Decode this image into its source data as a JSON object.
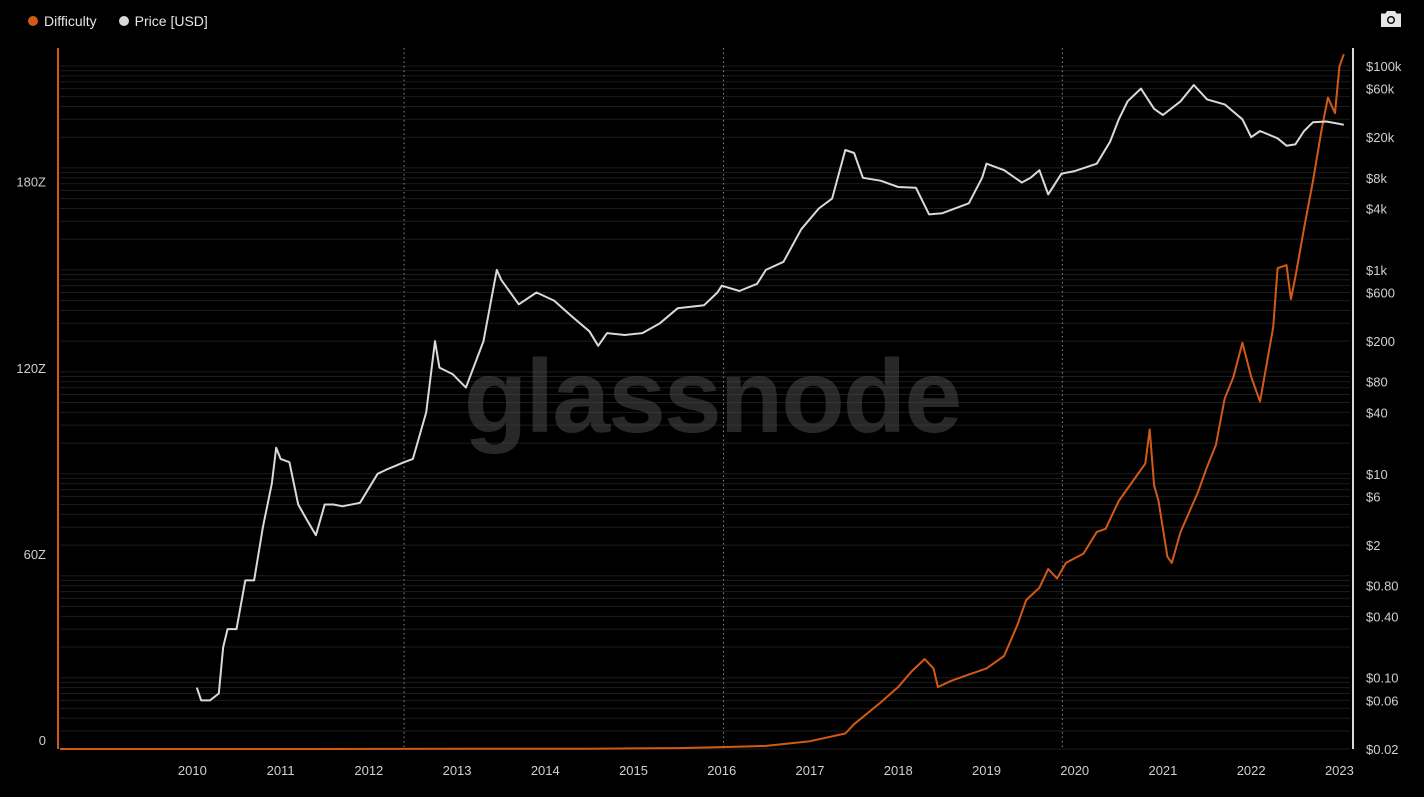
{
  "legend": {
    "series1": "Difficulty",
    "series2": "Price [USD]"
  },
  "watermark": "glassnode",
  "colors": {
    "difficulty": "#d35a16",
    "price": "#d9d9d9",
    "background": "#000000",
    "grid": "#1c1c1c"
  },
  "icons": {
    "camera": "camera-icon"
  },
  "chart_data": {
    "type": "line",
    "x_ticks": [
      "2010",
      "2011",
      "2012",
      "2013",
      "2014",
      "2015",
      "2016",
      "2017",
      "2018",
      "2019",
      "2020",
      "2021",
      "2022",
      "2023"
    ],
    "left_axis": {
      "ticks": [
        {
          "value": 0,
          "label": "0"
        },
        {
          "value": 60,
          "label": "60Z"
        },
        {
          "value": 120,
          "label": "120Z"
        },
        {
          "value": 180,
          "label": "180Z"
        }
      ],
      "range": [
        0,
        226
      ]
    },
    "right_axis": {
      "scale": "log",
      "range": [
        0.02,
        150000
      ],
      "ticks": [
        {
          "value": 0.02,
          "label": "$0.02"
        },
        {
          "value": 0.06,
          "label": "$0.06"
        },
        {
          "value": 0.1,
          "label": "$0.10"
        },
        {
          "value": 0.4,
          "label": "$0.40"
        },
        {
          "value": 0.8,
          "label": "$0.80"
        },
        {
          "value": 2,
          "label": "$2"
        },
        {
          "value": 6,
          "label": "$6"
        },
        {
          "value": 10,
          "label": "$10"
        },
        {
          "value": 40,
          "label": "$40"
        },
        {
          "value": 80,
          "label": "$80"
        },
        {
          "value": 200,
          "label": "$200"
        },
        {
          "value": 600,
          "label": "$600"
        },
        {
          "value": 1000,
          "label": "$1k"
        },
        {
          "value": 4000,
          "label": "$4k"
        },
        {
          "value": 8000,
          "label": "$8k"
        },
        {
          "value": 20000,
          "label": "$20k"
        },
        {
          "value": 60000,
          "label": "$60k"
        },
        {
          "value": 100000,
          "label": "$100k"
        }
      ]
    },
    "halvings": [
      2012.9,
      2016.52,
      2020.36
    ],
    "series": [
      {
        "name": "Difficulty",
        "axis": "left",
        "points": [
          [
            2009.0,
            0
          ],
          [
            2012.0,
            0
          ],
          [
            2014.0,
            0.05
          ],
          [
            2015.0,
            0.1
          ],
          [
            2016.0,
            0.3
          ],
          [
            2016.5,
            0.6
          ],
          [
            2017.0,
            1.0
          ],
          [
            2017.5,
            2.5
          ],
          [
            2017.9,
            5
          ],
          [
            2018.0,
            8
          ],
          [
            2018.3,
            15
          ],
          [
            2018.5,
            20
          ],
          [
            2018.65,
            25
          ],
          [
            2018.8,
            29
          ],
          [
            2018.9,
            26
          ],
          [
            2018.95,
            20
          ],
          [
            2019.1,
            22
          ],
          [
            2019.3,
            24
          ],
          [
            2019.5,
            26
          ],
          [
            2019.7,
            30
          ],
          [
            2019.85,
            40
          ],
          [
            2019.95,
            48
          ],
          [
            2020.1,
            52
          ],
          [
            2020.2,
            58
          ],
          [
            2020.3,
            55
          ],
          [
            2020.4,
            60
          ],
          [
            2020.6,
            63
          ],
          [
            2020.75,
            70
          ],
          [
            2020.85,
            71
          ],
          [
            2021.0,
            80
          ],
          [
            2021.2,
            88
          ],
          [
            2021.3,
            92
          ],
          [
            2021.35,
            103
          ],
          [
            2021.4,
            85
          ],
          [
            2021.45,
            80
          ],
          [
            2021.55,
            62
          ],
          [
            2021.6,
            60
          ],
          [
            2021.7,
            70
          ],
          [
            2021.9,
            83
          ],
          [
            2022.0,
            91
          ],
          [
            2022.1,
            98
          ],
          [
            2022.2,
            113
          ],
          [
            2022.3,
            120
          ],
          [
            2022.4,
            131
          ],
          [
            2022.5,
            120
          ],
          [
            2022.6,
            112
          ],
          [
            2022.65,
            120
          ],
          [
            2022.7,
            128
          ],
          [
            2022.75,
            136
          ],
          [
            2022.8,
            155
          ],
          [
            2022.9,
            156
          ],
          [
            2022.95,
            145
          ],
          [
            2023.0,
            152
          ],
          [
            2023.1,
            168
          ],
          [
            2023.2,
            183
          ],
          [
            2023.3,
            200
          ],
          [
            2023.37,
            210
          ],
          [
            2023.45,
            205
          ],
          [
            2023.5,
            220
          ],
          [
            2023.55,
            224
          ]
        ]
      },
      {
        "name": "Price [USD]",
        "axis": "right",
        "points": [
          [
            2010.55,
            0.08
          ],
          [
            2010.6,
            0.06
          ],
          [
            2010.7,
            0.06
          ],
          [
            2010.8,
            0.07
          ],
          [
            2010.85,
            0.2
          ],
          [
            2010.9,
            0.3
          ],
          [
            2011.0,
            0.3
          ],
          [
            2011.1,
            0.9
          ],
          [
            2011.2,
            0.9
          ],
          [
            2011.3,
            3
          ],
          [
            2011.4,
            8
          ],
          [
            2011.45,
            18
          ],
          [
            2011.5,
            14
          ],
          [
            2011.6,
            13
          ],
          [
            2011.7,
            5
          ],
          [
            2011.8,
            3.5
          ],
          [
            2011.9,
            2.5
          ],
          [
            2012.0,
            5
          ],
          [
            2012.1,
            5
          ],
          [
            2012.2,
            4.8
          ],
          [
            2012.4,
            5.2
          ],
          [
            2012.6,
            10
          ],
          [
            2012.7,
            11
          ],
          [
            2012.9,
            13
          ],
          [
            2013.0,
            14
          ],
          [
            2013.15,
            40
          ],
          [
            2013.25,
            200
          ],
          [
            2013.3,
            110
          ],
          [
            2013.45,
            95
          ],
          [
            2013.6,
            70
          ],
          [
            2013.8,
            200
          ],
          [
            2013.95,
            1000
          ],
          [
            2014.0,
            800
          ],
          [
            2014.2,
            460
          ],
          [
            2014.4,
            600
          ],
          [
            2014.6,
            500
          ],
          [
            2014.8,
            350
          ],
          [
            2015.0,
            250
          ],
          [
            2015.1,
            180
          ],
          [
            2015.2,
            240
          ],
          [
            2015.4,
            230
          ],
          [
            2015.6,
            240
          ],
          [
            2015.8,
            300
          ],
          [
            2016.0,
            420
          ],
          [
            2016.3,
            450
          ],
          [
            2016.45,
            600
          ],
          [
            2016.5,
            700
          ],
          [
            2016.7,
            620
          ],
          [
            2016.9,
            730
          ],
          [
            2017.0,
            1000
          ],
          [
            2017.2,
            1200
          ],
          [
            2017.4,
            2500
          ],
          [
            2017.6,
            4000
          ],
          [
            2017.75,
            5000
          ],
          [
            2017.9,
            15000
          ],
          [
            2018.0,
            14000
          ],
          [
            2018.1,
            8000
          ],
          [
            2018.3,
            7500
          ],
          [
            2018.5,
            6500
          ],
          [
            2018.7,
            6400
          ],
          [
            2018.85,
            3500
          ],
          [
            2019.0,
            3600
          ],
          [
            2019.3,
            4500
          ],
          [
            2019.45,
            8000
          ],
          [
            2019.5,
            11000
          ],
          [
            2019.7,
            9500
          ],
          [
            2019.9,
            7200
          ],
          [
            2020.0,
            8000
          ],
          [
            2020.1,
            9500
          ],
          [
            2020.2,
            5500
          ],
          [
            2020.35,
            8800
          ],
          [
            2020.5,
            9300
          ],
          [
            2020.75,
            11000
          ],
          [
            2020.9,
            18000
          ],
          [
            2021.0,
            30000
          ],
          [
            2021.1,
            45000
          ],
          [
            2021.25,
            60000
          ],
          [
            2021.4,
            38000
          ],
          [
            2021.5,
            33000
          ],
          [
            2021.7,
            45000
          ],
          [
            2021.85,
            65000
          ],
          [
            2022.0,
            47000
          ],
          [
            2022.2,
            42000
          ],
          [
            2022.4,
            30000
          ],
          [
            2022.5,
            20000
          ],
          [
            2022.6,
            23000
          ],
          [
            2022.8,
            19500
          ],
          [
            2022.9,
            16500
          ],
          [
            2023.0,
            17000
          ],
          [
            2023.1,
            23000
          ],
          [
            2023.2,
            28000
          ],
          [
            2023.35,
            28500
          ],
          [
            2023.5,
            27000
          ],
          [
            2023.55,
            26500
          ]
        ]
      }
    ]
  }
}
